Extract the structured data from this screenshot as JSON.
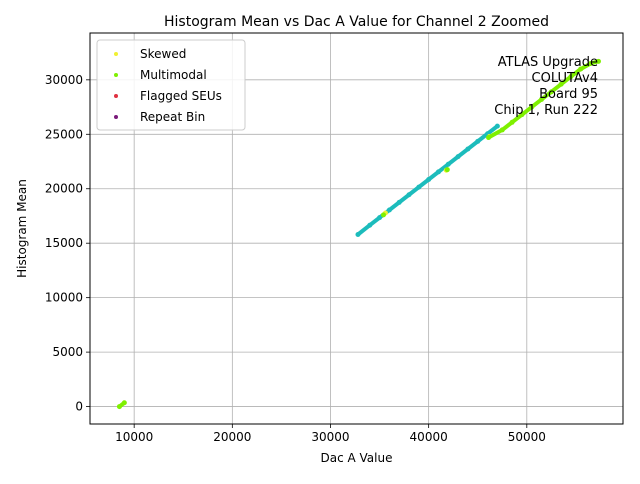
{
  "chart_data": {
    "type": "scatter",
    "title": "Histogram Mean vs Dac A Value for Channel 2 Zoomed",
    "xlabel": "Dac A Value",
    "ylabel": "Histogram Mean",
    "xlim": [
      5500,
      59800
    ],
    "ylim": [
      -1600,
      34300
    ],
    "xticks": [
      10000,
      20000,
      30000,
      40000,
      50000
    ],
    "xtick_labels": [
      "10000",
      "20000",
      "30000",
      "40000",
      "50000"
    ],
    "yticks": [
      0,
      5000,
      10000,
      15000,
      20000,
      25000,
      30000
    ],
    "ytick_labels": [
      "0",
      "5000",
      "10000",
      "15000",
      "20000",
      "25000",
      "30000"
    ],
    "grid": true,
    "legend_position": "upper-left",
    "legend": [
      {
        "label": "Skewed",
        "color": "#f0f032"
      },
      {
        "label": "Multimodal",
        "color": "#7ff000"
      },
      {
        "label": "Flagged SEUs",
        "color": "#e03040"
      },
      {
        "label": "Repeat Bin",
        "color": "#7a1a7a"
      }
    ],
    "annotation": [
      "ATLAS Upgrade",
      "COLUTAv4",
      "Board 95",
      "Chip 1, Run 222"
    ],
    "series": [
      {
        "color": "#1cbcbc",
        "x": [
          32800,
          34000,
          35000,
          36000,
          37000,
          38000,
          39000,
          40000,
          41000,
          42000,
          43000,
          44000,
          45000,
          46000,
          47000
        ],
        "y": [
          15800,
          16650,
          17350,
          18050,
          18750,
          19450,
          20150,
          20850,
          21550,
          22250,
          22950,
          23650,
          24350,
          25050,
          25750
        ]
      },
      {
        "name": "Skewed",
        "color": "#f0f032",
        "x": [
          35600,
          41800,
          46200
        ],
        "y": [
          17770,
          21700,
          24800
        ]
      },
      {
        "name": "Multimodal",
        "color": "#7ff000",
        "x": [
          8500,
          9000,
          35400,
          41900,
          46100,
          47500,
          48500,
          49500,
          50500,
          51500,
          52500,
          53500,
          54500,
          55500,
          56500,
          57300
        ],
        "y": [
          0,
          350,
          17600,
          21750,
          24700,
          25400,
          26100,
          26800,
          27500,
          28200,
          28900,
          29600,
          30300,
          31000,
          31500,
          31700
        ]
      },
      {
        "name": "Flagged SEUs",
        "color": "#e03040",
        "x": [],
        "y": []
      },
      {
        "name": "Repeat Bin",
        "color": "#7a1a7a",
        "x": [],
        "y": []
      }
    ]
  }
}
